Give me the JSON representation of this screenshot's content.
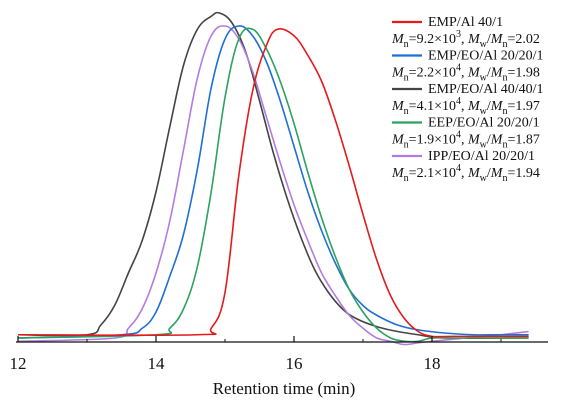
{
  "chart_data": {
    "type": "line",
    "xlabel": "Retention time (min)",
    "ylabel": "",
    "xlim": [
      12,
      19.5
    ],
    "ylim": [
      -0.02,
      1.0
    ],
    "xticks": [
      "12",
      "14",
      "16",
      "18"
    ],
    "grid": false,
    "legend_position": "top-right",
    "series": [
      {
        "name": "EMP/Al  40/1",
        "stats": {
          "mn_value": "9.2×10",
          "mn_exp": "3",
          "pdi": "2.02"
        },
        "color": "#e41a1c",
        "x": [
          12.0,
          14.6,
          14.8,
          15.0,
          15.2,
          15.4,
          15.6,
          15.76,
          16.0,
          16.2,
          16.4,
          16.6,
          16.8,
          17.0,
          17.2,
          17.4,
          17.6,
          17.8,
          18.0,
          18.3,
          19.4
        ],
        "y": [
          0.01,
          0.01,
          0.03,
          0.14,
          0.5,
          0.76,
          0.9,
          0.95,
          0.93,
          0.87,
          0.79,
          0.67,
          0.53,
          0.38,
          0.24,
          0.13,
          0.06,
          0.02,
          0.005,
          0.005,
          0.005
        ]
      },
      {
        "name": "EMP/EO/Al  20/20/1",
        "stats": {
          "mn_value": "2.2×10",
          "mn_exp": "4",
          "pdi": "1.98"
        },
        "color": "#1f6fd6",
        "x": [
          12.0,
          13.5,
          13.8,
          14.0,
          14.2,
          14.4,
          14.6,
          14.8,
          15.0,
          15.2,
          15.4,
          15.6,
          15.8,
          16.0,
          16.2,
          16.4,
          16.6,
          16.8,
          17.0,
          17.2,
          17.5,
          17.8,
          18.2,
          18.6,
          19.0,
          19.4
        ],
        "y": [
          0.0,
          0.01,
          0.03,
          0.08,
          0.19,
          0.32,
          0.52,
          0.77,
          0.92,
          0.96,
          0.93,
          0.85,
          0.73,
          0.59,
          0.45,
          0.33,
          0.23,
          0.15,
          0.1,
          0.07,
          0.04,
          0.025,
          0.015,
          0.01,
          0.01,
          0.01
        ]
      },
      {
        "name": "EMP/EO/Al  40/40/1",
        "stats": {
          "mn_value": "4.1×10",
          "mn_exp": "4",
          "pdi": "1.97"
        },
        "color": "#444444",
        "x": [
          12.0,
          13.0,
          13.2,
          13.4,
          13.6,
          13.8,
          14.0,
          14.2,
          14.4,
          14.6,
          14.8,
          14.92,
          15.1,
          15.3,
          15.5,
          15.7,
          15.9,
          16.1,
          16.3,
          16.5,
          16.7,
          16.9,
          17.2,
          17.5,
          17.8,
          18.2,
          19.4
        ],
        "y": [
          0.01,
          0.01,
          0.04,
          0.1,
          0.2,
          0.3,
          0.45,
          0.65,
          0.84,
          0.95,
          0.99,
          1.0,
          0.97,
          0.88,
          0.73,
          0.57,
          0.43,
          0.31,
          0.21,
          0.14,
          0.09,
          0.06,
          0.035,
          0.02,
          0.01,
          0.0,
          0.0
        ]
      },
      {
        "name": "EEP/EO/Al  20/20/1",
        "stats": {
          "mn_value": "1.9×10",
          "mn_exp": "4",
          "pdi": "1.87"
        },
        "color": "#2ca25f",
        "x": [
          12.0,
          14.0,
          14.2,
          14.4,
          14.6,
          14.8,
          15.0,
          15.2,
          15.4,
          15.6,
          15.8,
          16.0,
          16.2,
          16.4,
          16.6,
          16.8,
          17.0,
          17.2,
          17.4,
          17.6,
          17.8,
          18.0,
          18.3,
          18.6,
          19.0,
          19.4
        ],
        "y": [
          0.0,
          0.01,
          0.03,
          0.09,
          0.22,
          0.45,
          0.74,
          0.92,
          0.95,
          0.89,
          0.79,
          0.66,
          0.51,
          0.37,
          0.25,
          0.15,
          0.08,
          0.03,
          0.0,
          -0.01,
          -0.01,
          0.0,
          0.0,
          0.0,
          0.0,
          0.0
        ]
      },
      {
        "name": "IPP/EO/Al  20/20/1",
        "stats": {
          "mn_value": "2.1×10",
          "mn_exp": "4",
          "pdi": "1.94"
        },
        "color": "#b47be0",
        "x": [
          12.0,
          13.4,
          13.6,
          13.8,
          14.0,
          14.2,
          14.4,
          14.6,
          14.8,
          15.0,
          15.2,
          15.4,
          15.6,
          15.8,
          16.0,
          16.2,
          16.4,
          16.6,
          16.8,
          17.0,
          17.2,
          17.4,
          17.6,
          17.8,
          18.0,
          18.5,
          19.0,
          19.4
        ],
        "y": [
          -0.01,
          0.0,
          0.03,
          0.09,
          0.2,
          0.36,
          0.58,
          0.8,
          0.93,
          0.96,
          0.92,
          0.82,
          0.68,
          0.54,
          0.41,
          0.3,
          0.2,
          0.13,
          0.07,
          0.03,
          0.0,
          -0.01,
          -0.02,
          -0.015,
          -0.01,
          0.0,
          0.01,
          0.02
        ]
      }
    ]
  }
}
